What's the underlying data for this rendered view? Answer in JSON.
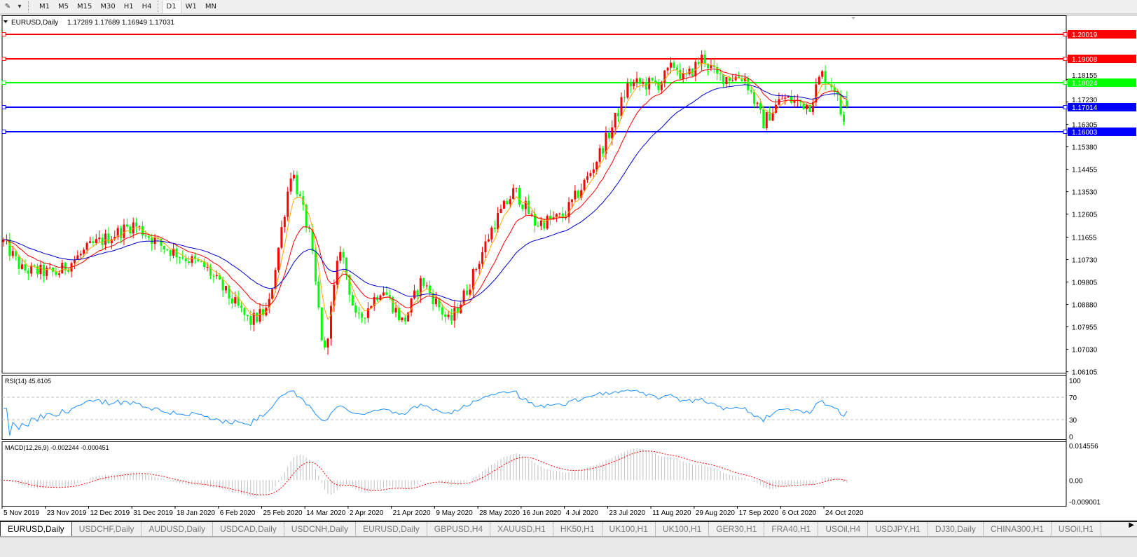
{
  "toolbar": {
    "timeframes": [
      "M1",
      "M5",
      "M15",
      "M30",
      "H1",
      "H4",
      "D1",
      "W1",
      "MN"
    ],
    "active_timeframe": "D1"
  },
  "chart": {
    "symbol_label": "EURUSD,Daily",
    "ohlc": "1.17289 1.17689 1.16949 1.17031",
    "last": {
      "open": 1.17289,
      "high": 1.17689,
      "low": 1.16949,
      "close": 1.17031
    },
    "colors": {
      "bull": "#ff0000",
      "bear": "#00ff00",
      "ma_fast": "#ffa500",
      "ma_mid": "#ff0000",
      "ma_slow": "#0000cc",
      "rsi": "#1e90ff",
      "macd_hist": "#c0c0c0",
      "macd_signal": "#ff0000"
    },
    "price_axis": [
      "1.18155",
      "1.17230",
      "1.16305",
      "1.15380",
      "1.14455",
      "1.13530",
      "1.12605",
      "1.11655",
      "1.10730",
      "1.09805",
      "1.08880",
      "1.07955",
      "1.07030",
      "1.06105"
    ],
    "hlines": [
      {
        "price": "1.20019",
        "color": "#ff0000"
      },
      {
        "price": "1.19008",
        "color": "#ff0000"
      },
      {
        "price": "1.18024",
        "color": "#00ff00"
      },
      {
        "price": "1.17014",
        "color": "#0000ff"
      },
      {
        "price": "1.16003",
        "color": "#0000ff"
      }
    ],
    "price_path": [
      [
        "2019-11-05",
        1.1146
      ],
      [
        "2019-11-13",
        1.1031
      ],
      [
        "2019-11-28",
        1.1016
      ],
      [
        "2019-12-13",
        1.113
      ],
      [
        "2019-12-31",
        1.1218
      ],
      [
        "2020-01-12",
        1.113
      ],
      [
        "2020-01-31",
        1.104
      ],
      [
        "2020-02-19",
        1.0814
      ],
      [
        "2020-02-27",
        1.087
      ],
      [
        "2020-03-08",
        1.145
      ],
      [
        "2020-03-16",
        1.116
      ],
      [
        "2020-03-22",
        1.067
      ],
      [
        "2020-03-29",
        1.113
      ],
      [
        "2020-04-05",
        1.081
      ],
      [
        "2020-04-16",
        1.096
      ],
      [
        "2020-04-25",
        1.081
      ],
      [
        "2020-05-03",
        1.099
      ],
      [
        "2020-05-15",
        1.081
      ],
      [
        "2020-05-23",
        1.096
      ],
      [
        "2020-06-03",
        1.122
      ],
      [
        "2020-06-12",
        1.136
      ],
      [
        "2020-06-21",
        1.122
      ],
      [
        "2020-07-03",
        1.125
      ],
      [
        "2020-07-14",
        1.142
      ],
      [
        "2020-07-24",
        1.162
      ],
      [
        "2020-07-31",
        1.1797
      ],
      [
        "2020-08-13",
        1.1797
      ],
      [
        "2020-08-20",
        1.188
      ],
      [
        "2020-08-24",
        1.181
      ],
      [
        "2020-09-01",
        1.191
      ],
      [
        "2020-09-07",
        1.1826
      ],
      [
        "2020-09-19",
        1.1826
      ],
      [
        "2020-09-27",
        1.1637
      ],
      [
        "2020-10-05",
        1.1739
      ],
      [
        "2020-10-17",
        1.171
      ],
      [
        "2020-10-22",
        1.184
      ],
      [
        "2020-10-28",
        1.178
      ],
      [
        "2020-10-31",
        1.165
      ],
      [
        "2020-11-03",
        1.17031
      ]
    ],
    "date_axis": [
      "5 Nov 2019",
      "23 Nov 2019",
      "12 Dec 2019",
      "31 Dec 2019",
      "18 Jan 2020",
      "6 Feb 2020",
      "25 Feb 2020",
      "14 Mar 2020",
      "2 Apr 2020",
      "21 Apr 2020",
      "9 May 2020",
      "28 May 2020",
      "16 Jun 2020",
      "4 Jul 2020",
      "23 Jul 2020",
      "11 Aug 2020",
      "29 Aug 2020",
      "17 Sep 2020",
      "6 Oct 2020",
      "24 Oct 2020"
    ]
  },
  "rsi": {
    "label": "RSI(14) 45.6105",
    "axis": [
      "100",
      "70",
      "30",
      "0"
    ]
  },
  "macd": {
    "label": "MACD(12,26,9) -0.002244 -0.000451",
    "axis": [
      "0.014556",
      "0.00",
      "-0.009001"
    ]
  },
  "tabs": [
    "EURUSD,Daily",
    "USDCHF,Daily",
    "AUDUSD,Daily",
    "USDCAD,Daily",
    "USDCNH,Daily",
    "EURUSD,Daily",
    "GBPUSD,H4",
    "XAUUSD,H1",
    "HK50,H1",
    "UK100,H1",
    "UK100,H1",
    "GER30,H1",
    "FRA40,H1",
    "USOil,H4",
    "USDJPY,H1",
    "DJ30,Daily",
    "CHINA300,H1",
    "USOil,H1"
  ],
  "active_tab": 0
}
